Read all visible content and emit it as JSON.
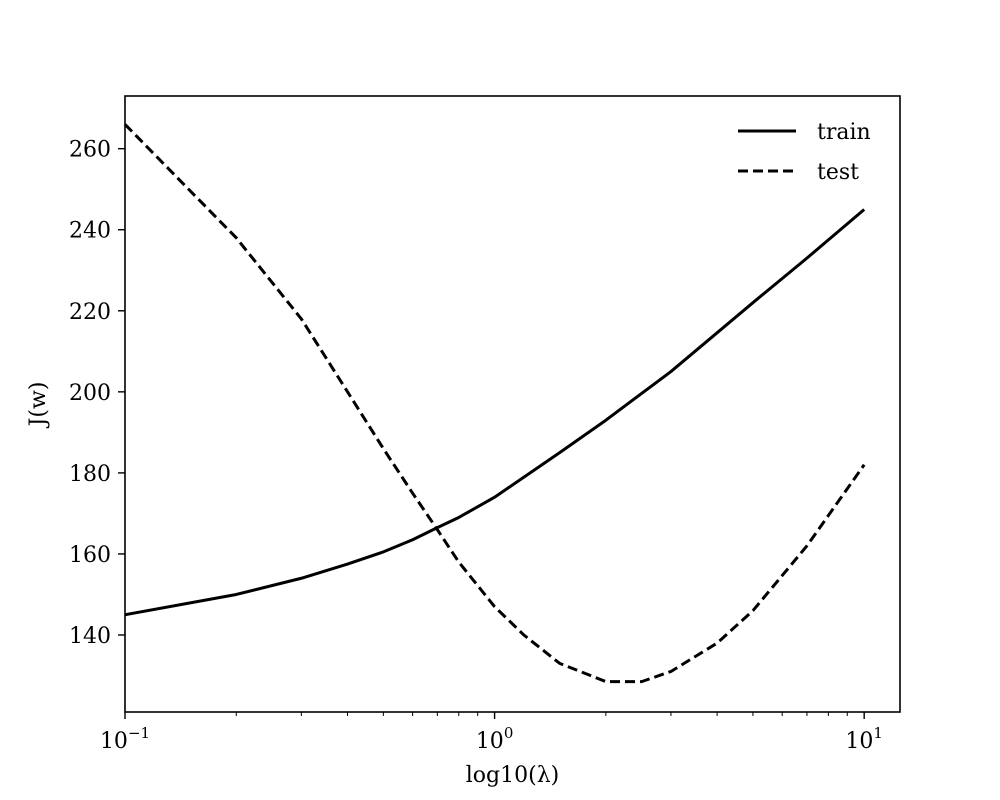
{
  "chart_data": {
    "type": "line",
    "xscale": "log",
    "xlim": [
      0.1,
      12.5
    ],
    "ylim": [
      121,
      273
    ],
    "xlabel": "log10(λ)",
    "ylabel": "J(w)",
    "x_ticks": [
      {
        "value": 0.1,
        "base": "10",
        "exp": "−1"
      },
      {
        "value": 1,
        "base": "10",
        "exp": "0"
      },
      {
        "value": 10,
        "base": "10",
        "exp": "1"
      }
    ],
    "y_ticks": [
      140,
      160,
      180,
      200,
      220,
      240,
      260
    ],
    "legend": {
      "position": "top-right"
    },
    "series": [
      {
        "name": "train",
        "style": "solid",
        "color": "#000000",
        "x": [
          0.1,
          0.2,
          0.3,
          0.4,
          0.5,
          0.6,
          0.7,
          0.8,
          1.0,
          1.5,
          2.0,
          3.0,
          5.0,
          7.0,
          10.0
        ],
        "y": [
          145,
          150,
          154,
          157.5,
          160.5,
          163.5,
          166.5,
          169,
          174,
          185,
          193,
          205,
          222,
          233,
          245
        ]
      },
      {
        "name": "test",
        "style": "dashed",
        "color": "#000000",
        "x": [
          0.1,
          0.2,
          0.3,
          0.4,
          0.5,
          0.6,
          0.7,
          0.8,
          1.0,
          1.2,
          1.5,
          2.0,
          2.5,
          3.0,
          4.0,
          5.0,
          7.0,
          10.0
        ],
        "y": [
          266,
          238,
          218,
          200,
          186,
          175,
          166,
          158,
          147,
          140,
          133,
          128.5,
          128.5,
          131,
          138,
          146,
          162,
          182
        ]
      }
    ]
  }
}
